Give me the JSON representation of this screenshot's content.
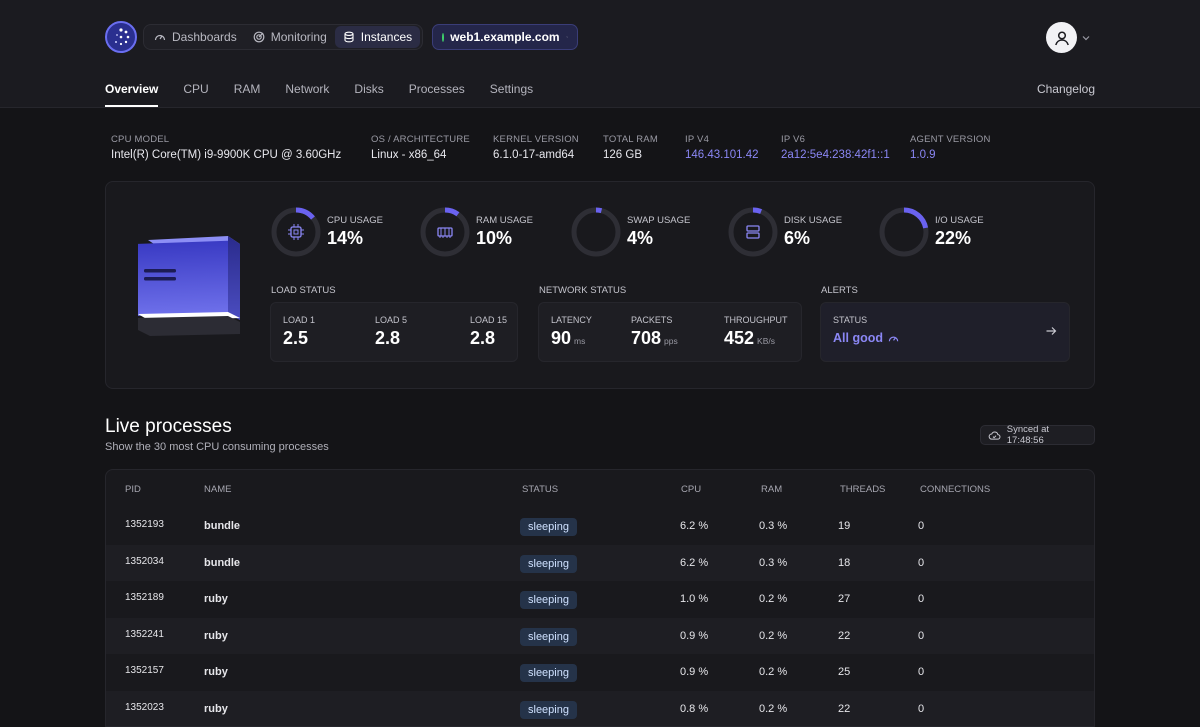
{
  "nav": {
    "items": [
      {
        "label": "Dashboards",
        "icon": "gauge-icon"
      },
      {
        "label": "Monitoring",
        "icon": "radar-icon"
      },
      {
        "label": "Instances",
        "icon": "database-icon"
      }
    ],
    "host": "web1.example.com",
    "host_status_color": "#3ecf6a"
  },
  "tabs": [
    "Overview",
    "CPU",
    "RAM",
    "Network",
    "Disks",
    "Processes",
    "Settings"
  ],
  "changelog": "Changelog",
  "system_info": [
    {
      "label": "CPU MODEL",
      "value": "Intel(R) Core(TM) i9-9900K CPU @ 3.60GHz"
    },
    {
      "label": "OS / ARCHITECTURE",
      "value": "Linux - x86_64"
    },
    {
      "label": "KERNEL VERSION",
      "value": "6.1.0-17-amd64"
    },
    {
      "label": "TOTAL RAM",
      "value": "126 GB"
    },
    {
      "label": "IP V4",
      "value": "146.43.101.42"
    },
    {
      "label": "IP V6",
      "value": "2a12:5e4:238:42f1::1"
    },
    {
      "label": "AGENT VERSION",
      "value": "1.0.9"
    }
  ],
  "usage": [
    {
      "label": "CPU USAGE",
      "value": "14%",
      "fraction": 0.14
    },
    {
      "label": "RAM USAGE",
      "value": "10%",
      "fraction": 0.1
    },
    {
      "label": "SWAP USAGE",
      "value": "4%",
      "fraction": 0.04
    },
    {
      "label": "DISK USAGE",
      "value": "6%",
      "fraction": 0.06
    },
    {
      "label": "I/O USAGE",
      "value": "22%",
      "fraction": 0.22
    }
  ],
  "load": {
    "title": "LOAD STATUS",
    "items": [
      {
        "label": "LOAD 1",
        "value": "2.5"
      },
      {
        "label": "LOAD 5",
        "value": "2.8"
      },
      {
        "label": "LOAD 15",
        "value": "2.8"
      }
    ]
  },
  "network": {
    "title": "NETWORK STATUS",
    "items": [
      {
        "label": "LATENCY",
        "value": "90",
        "unit": "ms"
      },
      {
        "label": "PACKETS",
        "value": "708",
        "unit": "pps"
      },
      {
        "label": "THROUGHPUT",
        "value": "452",
        "unit": "KB/s"
      }
    ]
  },
  "alerts": {
    "title": "ALERTS",
    "status_label": "STATUS",
    "status_value": "All good"
  },
  "live": {
    "title": "Live processes",
    "subtitle": "Show the 30 most CPU consuming processes",
    "synced": "Synced at 17:48:56",
    "columns": [
      "PID",
      "NAME",
      "STATUS",
      "CPU",
      "RAM",
      "THREADS",
      "CONNECTIONS"
    ],
    "rows": [
      {
        "pid": "1352193",
        "name": "bundle",
        "status": "sleeping",
        "cpu": "6.2 %",
        "ram": "0.3 %",
        "threads": "19",
        "connections": "0"
      },
      {
        "pid": "1352034",
        "name": "bundle",
        "status": "sleeping",
        "cpu": "6.2 %",
        "ram": "0.3 %",
        "threads": "18",
        "connections": "0"
      },
      {
        "pid": "1352189",
        "name": "ruby",
        "status": "sleeping",
        "cpu": "1.0 %",
        "ram": "0.2 %",
        "threads": "27",
        "connections": "0"
      },
      {
        "pid": "1352241",
        "name": "ruby",
        "status": "sleeping",
        "cpu": "0.9 %",
        "ram": "0.2 %",
        "threads": "22",
        "connections": "0"
      },
      {
        "pid": "1352157",
        "name": "ruby",
        "status": "sleeping",
        "cpu": "0.9 %",
        "ram": "0.2 %",
        "threads": "25",
        "connections": "0"
      },
      {
        "pid": "1352023",
        "name": "ruby",
        "status": "sleeping",
        "cpu": "0.8 %",
        "ram": "0.2 %",
        "threads": "22",
        "connections": "0"
      }
    ]
  },
  "colors": {
    "accent": "#6a62f0",
    "link": "#8b87f5",
    "ring_track": "#2e2e35"
  }
}
